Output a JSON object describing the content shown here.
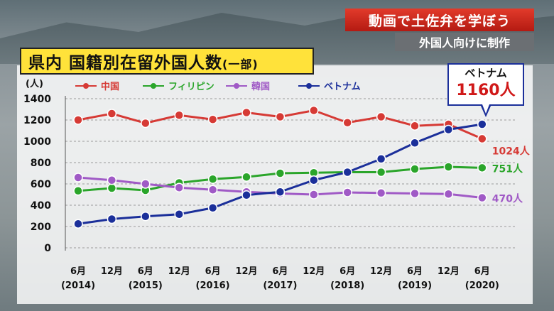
{
  "header": {
    "title_main": "県内 国籍別在留外国人数",
    "title_sub": "(一部)",
    "corner_title": "動画で土佐弁を学ぼう",
    "corner_subtitle": "外国人向けに制作"
  },
  "callout": {
    "label": "ベトナム",
    "value": "1160人"
  },
  "chart_data": {
    "type": "line",
    "title": "県内 国籍別在留外国人数(一部)",
    "unit": "(人)",
    "ylim": [
      0,
      1400
    ],
    "yticks": [
      0,
      200,
      400,
      600,
      800,
      1000,
      1200,
      1400
    ],
    "grid": true,
    "legend_position": "top-left",
    "categories": [
      "6月(2014)",
      "12月",
      "6月(2015)",
      "12月",
      "6月(2016)",
      "12月",
      "6月(2017)",
      "12月",
      "6月(2018)",
      "12月",
      "6月(2019)",
      "12月",
      "6月(2020)"
    ],
    "x_month_labels": [
      "6月",
      "12月",
      "6月",
      "12月",
      "6月",
      "12月",
      "6月",
      "12月",
      "6月",
      "12月",
      "6月",
      "12月",
      "6月"
    ],
    "x_year_labels": [
      {
        "index": 0,
        "label": "(2014)"
      },
      {
        "index": 2,
        "label": "(2015)"
      },
      {
        "index": 4,
        "label": "(2016)"
      },
      {
        "index": 6,
        "label": "(2017)"
      },
      {
        "index": 8,
        "label": "(2018)"
      },
      {
        "index": 10,
        "label": "(2019)"
      },
      {
        "index": 12,
        "label": "(2020)"
      }
    ],
    "series": [
      {
        "name": "中国",
        "color": "#d63a35",
        "values": [
          1200,
          1260,
          1170,
          1245,
          1205,
          1270,
          1230,
          1290,
          1175,
          1230,
          1145,
          1160,
          1024
        ],
        "end_label": "1024人"
      },
      {
        "name": "フィリピン",
        "color": "#2aa52a",
        "values": [
          535,
          560,
          540,
          610,
          645,
          665,
          700,
          705,
          710,
          710,
          740,
          760,
          751
        ],
        "end_label": "751人"
      },
      {
        "name": "韓国",
        "color": "#a05ac6",
        "values": [
          660,
          635,
          600,
          565,
          545,
          525,
          510,
          500,
          520,
          515,
          510,
          505,
          470
        ],
        "end_label": "470人"
      },
      {
        "name": "ベトナム",
        "color": "#1b2f9a",
        "values": [
          225,
          270,
          295,
          315,
          375,
          495,
          525,
          635,
          710,
          835,
          985,
          1110,
          1160
        ],
        "end_label": ""
      }
    ]
  }
}
